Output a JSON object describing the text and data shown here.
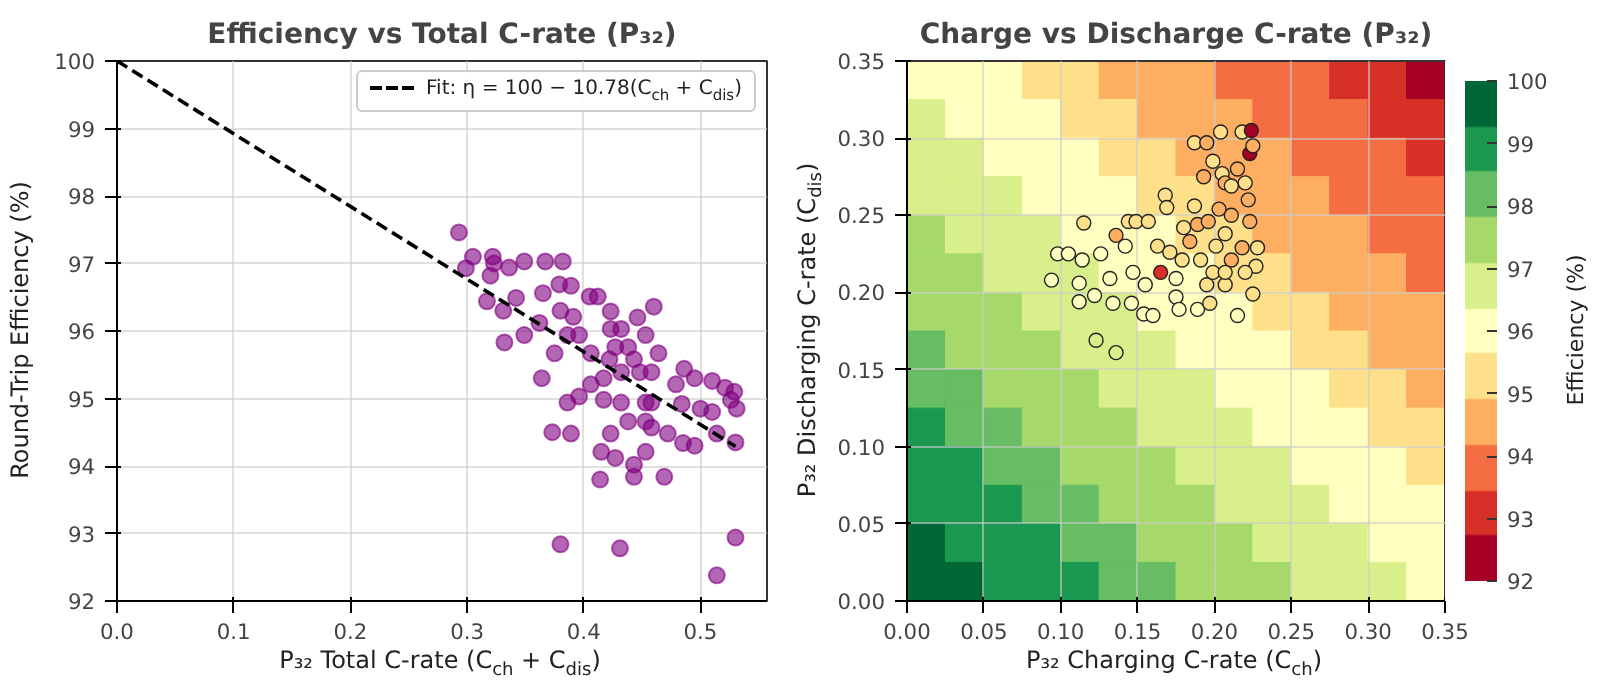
{
  "chart_data": [
    {
      "type": "scatter",
      "title": "Efficiency vs Total C-rate (P₃₂)",
      "xlabel": "P₃₂ Total C-rate (C$_{ch}$ + C$_{dis}$)",
      "ylabel": "Round-Trip Efficiency (%)",
      "xlim": [
        0,
        0.557
      ],
      "ylim": [
        92,
        100
      ],
      "xticks": [
        {
          "value": 0,
          "label": "0.0"
        },
        0.1,
        0.2,
        0.3,
        0.4,
        0.5
      ],
      "yticks": [
        92,
        93,
        94,
        95,
        96,
        97,
        98,
        99,
        100
      ],
      "grid": true,
      "legend": "top right",
      "marker": "circle",
      "series": [
        {
          "color": "#800080",
          "x": [
            0.293,
            0.299,
            0.305,
            0.322,
            0.323,
            0.32,
            0.336,
            0.349,
            0.367,
            0.382,
            0.317,
            0.331,
            0.332,
            0.349,
            0.364,
            0.373,
            0.389,
            0.365,
            0.379,
            0.389,
            0.405,
            0.412,
            0.423,
            0.446,
            0.46,
            0.391,
            0.396,
            0.406,
            0.422,
            0.438,
            0.453,
            0.464,
            0.458,
            0.432,
            0.417,
            0.396,
            0.386,
            0.417,
            0.432,
            0.453,
            0.438,
            0.423,
            0.415,
            0.414,
            0.427,
            0.443,
            0.443,
            0.453,
            0.469,
            0.472,
            0.458,
            0.479,
            0.486,
            0.495,
            0.484,
            0.485,
            0.495,
            0.5,
            0.51,
            0.521,
            0.529,
            0.526,
            0.531,
            0.514,
            0.53,
            0.51,
            0.38,
            0.431,
            0.53,
            0.514,
            0.375,
            0.386,
            0.38,
            0.362,
            0.342,
            0.423,
            0.432,
            0.427,
            0.443,
            0.448,
            0.406,
            0.458,
            0.453
          ],
          "values": [
            97.46,
            96.93,
            97.1,
            97.1,
            97.0,
            96.82,
            96.94,
            97.03,
            97.03,
            97.03,
            96.44,
            96.3,
            95.83,
            95.94,
            95.3,
            94.5,
            94.48,
            96.56,
            96.69,
            96.67,
            96.51,
            96.51,
            96.29,
            96.2,
            96.36,
            96.21,
            95.94,
            95.67,
            95.58,
            95.76,
            95.94,
            95.67,
            95.39,
            95.39,
            95.3,
            95.03,
            94.94,
            94.98,
            94.94,
            94.94,
            94.66,
            94.48,
            94.21,
            93.8,
            94.12,
            94.02,
            93.84,
            94.21,
            93.84,
            94.48,
            94.57,
            95.21,
            95.44,
            95.3,
            94.92,
            94.34,
            94.3,
            94.85,
            95.26,
            95.16,
            95.1,
            94.98,
            94.85,
            94.48,
            94.35,
            94.8,
            92.84,
            92.78,
            92.94,
            92.38,
            95.67,
            95.94,
            96.3,
            96.12,
            96.49,
            96.03,
            96.03,
            95.76,
            95.58,
            95.39,
            95.21,
            94.94,
            94.66
          ]
        },
        {
          "type": "line",
          "name": "Fit: η = 100 − 10.78(C$_{ch}$ + C$_{dis}$)",
          "color": "#000000",
          "line_style": "dashed",
          "marker": "none",
          "x": [
            0,
            0.53
          ],
          "values": [
            100,
            94.29
          ]
        }
      ]
    },
    {
      "type": "heatmap",
      "tick_labels": false,
      "clabel": "Efficiency (%)",
      "clim": [
        92,
        100
      ],
      "cticks": [
        92,
        93,
        94,
        95,
        96,
        97,
        98,
        99,
        100
      ],
      "categories": [
        null,
        null,
        null,
        null,
        null,
        null,
        null,
        null,
        null,
        null,
        null,
        null,
        null,
        null
      ],
      "y_categories": [
        null,
        null,
        null,
        null,
        null,
        null,
        null,
        null,
        null,
        null,
        null,
        null,
        null,
        null
      ],
      "cells": [
        [
          96.2,
          96.0,
          95.7,
          95.4,
          95.2,
          94.9,
          94.6,
          94.3,
          94.1,
          93.8,
          93.5,
          93.3,
          93.0,
          92.7
        ],
        [
          96.5,
          96.2,
          96.0,
          95.7,
          95.4,
          95.2,
          94.9,
          94.6,
          94.3,
          94.1,
          93.8,
          93.5,
          93.3,
          93.0
        ],
        [
          96.8,
          96.5,
          96.2,
          96.0,
          95.7,
          95.4,
          95.2,
          94.9,
          94.6,
          94.3,
          94.1,
          93.8,
          93.5,
          93.3
        ],
        [
          97.0,
          96.8,
          96.5,
          96.2,
          96.0,
          95.7,
          95.4,
          95.2,
          94.9,
          94.6,
          94.3,
          94.1,
          93.8,
          93.5
        ],
        [
          97.3,
          97.0,
          96.8,
          96.5,
          96.2,
          96.0,
          95.7,
          95.4,
          95.2,
          94.9,
          94.6,
          94.3,
          94.1,
          93.8
        ],
        [
          97.6,
          97.3,
          97.0,
          96.8,
          96.5,
          96.2,
          96.0,
          95.7,
          95.4,
          95.2,
          94.9,
          94.6,
          94.3,
          94.1
        ],
        [
          97.8,
          97.6,
          97.3,
          97.0,
          96.8,
          96.5,
          96.2,
          96.0,
          95.7,
          95.4,
          95.2,
          94.9,
          94.6,
          94.3
        ],
        [
          98.1,
          97.8,
          97.6,
          97.3,
          97.0,
          96.8,
          96.5,
          96.2,
          96.0,
          95.7,
          95.4,
          95.2,
          94.9,
          94.6
        ],
        [
          98.4,
          98.1,
          97.8,
          97.6,
          97.3,
          97.0,
          96.8,
          96.5,
          96.2,
          96.0,
          95.7,
          95.4,
          95.2,
          94.9
        ],
        [
          98.7,
          98.4,
          98.1,
          97.8,
          97.6,
          97.3,
          97.0,
          96.8,
          96.5,
          96.2,
          96.0,
          95.7,
          95.4,
          95.2
        ],
        [
          98.9,
          98.7,
          98.4,
          98.1,
          97.8,
          97.6,
          97.3,
          97.0,
          96.8,
          96.5,
          96.2,
          96.0,
          95.7,
          95.4
        ],
        [
          99.2,
          98.9,
          98.7,
          98.4,
          98.1,
          97.8,
          97.6,
          97.3,
          97.0,
          96.8,
          96.5,
          96.2,
          96.0,
          95.7
        ],
        [
          99.5,
          99.2,
          98.9,
          98.7,
          98.4,
          98.1,
          97.8,
          97.6,
          97.3,
          97.0,
          96.8,
          96.5,
          96.2,
          96.0
        ],
        [
          99.7,
          99.5,
          99.2,
          98.9,
          98.7,
          98.4,
          98.1,
          97.8,
          97.6,
          97.3,
          97.0,
          96.8,
          96.5,
          96.2
        ]
      ]
    },
    {
      "type": "scatter",
      "title": "Charge vs Discharge C-rate (P₃₂)",
      "xlabel": "P₃₂ Charging C-rate (C$_{ch}$)",
      "ylabel": "P₃₂ Discharging C-rate (C$_{dis}$)",
      "xlim": [
        0,
        0.35
      ],
      "ylim": [
        0,
        0.35
      ],
      "xticks": [
        {
          "value": 0,
          "label": "0.00"
        },
        0.05,
        {
          "value": 0.1,
          "label": "0.10"
        },
        0.15,
        {
          "value": 0.2,
          "label": "0.20"
        },
        0.25,
        {
          "value": 0.3,
          "label": "0.30"
        },
        0.35
      ],
      "yticks": [
        {
          "value": 0,
          "label": "0.00"
        },
        0.05,
        {
          "value": 0.1,
          "label": "0.10"
        },
        0.15,
        {
          "value": 0.2,
          "label": "0.20"
        },
        0.25,
        {
          "value": 0.3,
          "label": "0.30"
        },
        0.35
      ],
      "grid": true,
      "marker": "circle",
      "series": [
        {
          "x": [
            0.094,
            0.098,
            0.105,
            0.112,
            0.112,
            0.114,
            0.115,
            0.122,
            0.123,
            0.126,
            0.136,
            0.136,
            0.132,
            0.134,
            0.144,
            0.142,
            0.147,
            0.146,
            0.149,
            0.154,
            0.155,
            0.157,
            0.16,
            0.165,
            0.168,
            0.169,
            0.163,
            0.171,
            0.175,
            0.177,
            0.18,
            0.184,
            0.187,
            0.187,
            0.189,
            0.189,
            0.193,
            0.195,
            0.196,
            0.191,
            0.195,
            0.199,
            0.204,
            0.205,
            0.207,
            0.211,
            0.215,
            0.218,
            0.22,
            0.222,
            0.224,
            0.223,
            0.225,
            0.223,
            0.211,
            0.207,
            0.201,
            0.211,
            0.218,
            0.228,
            0.227,
            0.225,
            0.215,
            0.207,
            0.199,
            0.179,
            0.175,
            0.207,
            0.203,
            0.22,
            0.197
          ],
          "values": [
            0.208,
            0.225,
            0.225,
            0.194,
            0.206,
            0.221,
            0.245,
            0.198,
            0.169,
            0.225,
            0.161,
            0.237,
            0.209,
            0.193,
            0.246,
            0.23,
            0.213,
            0.193,
            0.246,
            0.186,
            0.205,
            0.246,
            0.185,
            0.213,
            0.263,
            0.255,
            0.23,
            0.226,
            0.197,
            0.189,
            0.242,
            0.233,
            0.256,
            0.297,
            0.244,
            0.189,
            0.275,
            0.297,
            0.246,
            0.221,
            0.205,
            0.285,
            0.304,
            0.277,
            0.271,
            0.269,
            0.28,
            0.304,
            0.271,
            0.26,
            0.305,
            0.29,
            0.295,
            0.246,
            0.25,
            0.238,
            0.23,
            0.221,
            0.229,
            0.229,
            0.217,
            0.199,
            0.185,
            0.205,
            0.213,
            0.221,
            0.209,
            0.213,
            0.254,
            0.213,
            0.193
          ],
          "colors": [
            "#ffffbf",
            "#ffffbf",
            "#ffffbf",
            "#ffffbf",
            "#ffffbf",
            "#ffffbf",
            "#fee08b",
            "#ffffbf",
            "#d9ef8b",
            "#ffffbf",
            "#d9ef8b",
            "#fdae61",
            "#ffffbf",
            "#ffffbf",
            "#fee08b",
            "#ffffbf",
            "#ffffbf",
            "#ffffbf",
            "#fee08b",
            "#ffffbf",
            "#ffffbf",
            "#fee08b",
            "#ffffbf",
            "#d73027",
            "#fee08b",
            "#fee08b",
            "#fee08b",
            "#fee08b",
            "#ffffbf",
            "#ffffbf",
            "#fee08b",
            "#fdae61",
            "#fee08b",
            "#fee08b",
            "#fdae61",
            "#ffffbf",
            "#fdae61",
            "#fdae61",
            "#fdae61",
            "#fee08b",
            "#fee08b",
            "#fee08b",
            "#fee08b",
            "#fee08b",
            "#fdae61",
            "#fee08b",
            "#fdae61",
            "#fee08b",
            "#fee08b",
            "#fdae61",
            "#a50026",
            "#a50026",
            "#fdae61",
            "#fdae61",
            "#fdae61",
            "#fee08b",
            "#fee08b",
            "#fdae61",
            "#fdae61",
            "#fee08b",
            "#fee08b",
            "#fee08b",
            "#ffffbf",
            "#fee08b",
            "#fee08b",
            "#fee08b",
            "#ffffbf",
            "#fee08b",
            "#fdae61",
            "#fee08b",
            "#fee08b"
          ]
        }
      ]
    }
  ]
}
